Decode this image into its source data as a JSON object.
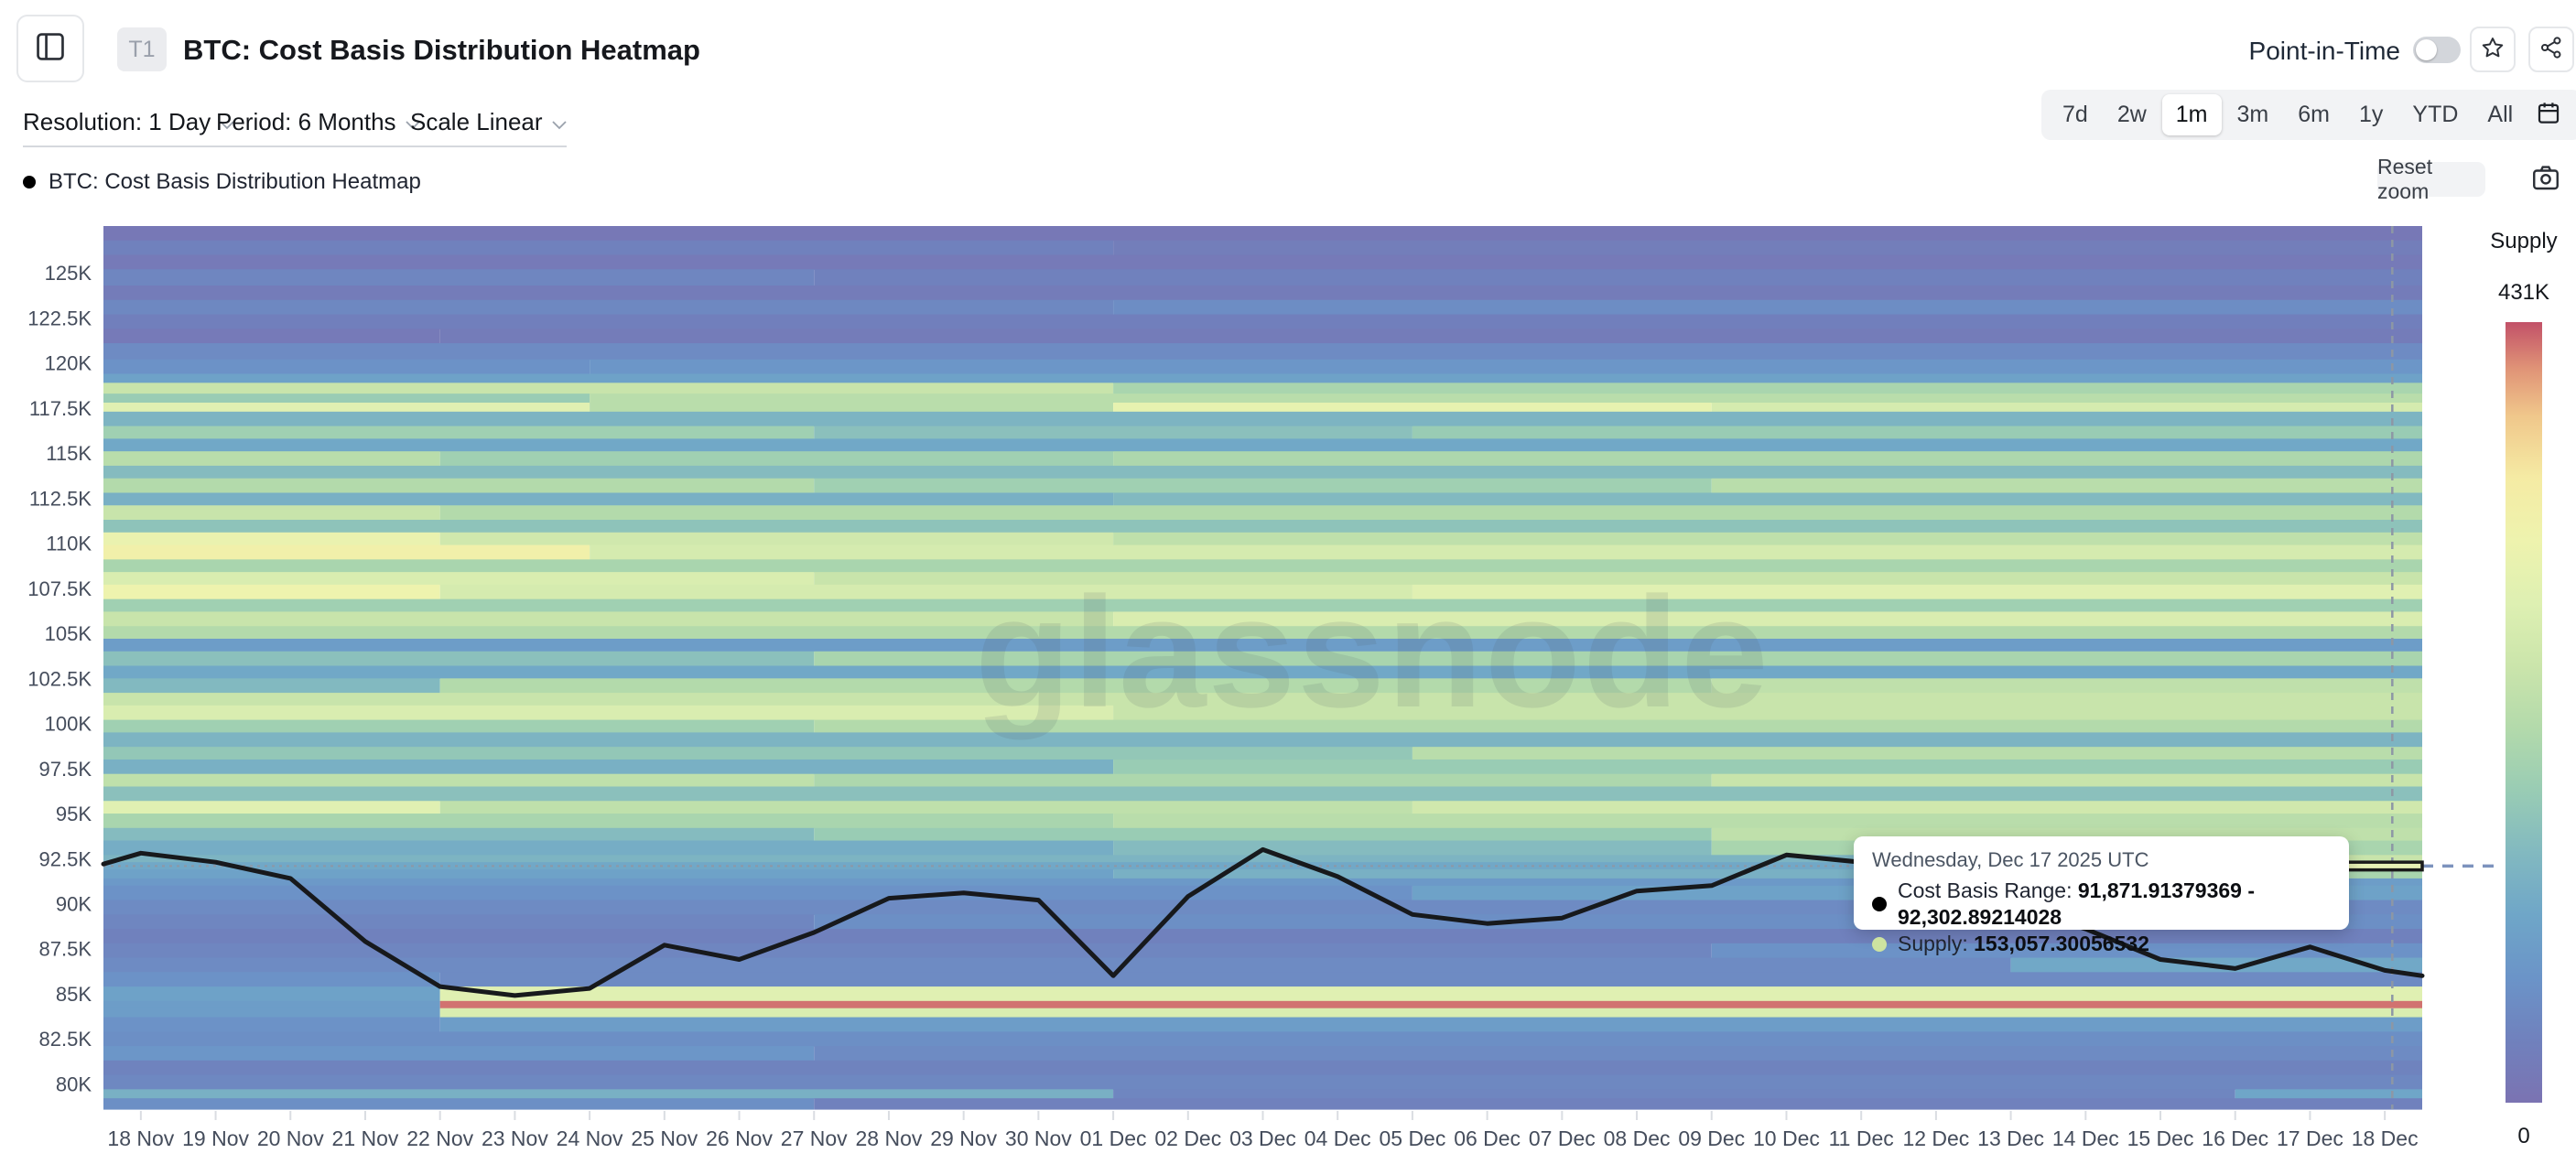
{
  "header": {
    "badge": "T1",
    "title": "BTC: Cost Basis Distribution Heatmap",
    "point_in_time_label": "Point-in-Time",
    "point_in_time_on": false
  },
  "controls": {
    "resolution_label": "Resolution: 1 Day",
    "period_label": "Period: 6 Months",
    "scale_label": "Scale Linear",
    "ranges": [
      "7d",
      "2w",
      "1m",
      "3m",
      "6m",
      "1y",
      "YTD",
      "All"
    ],
    "active_range": "1m"
  },
  "legend": {
    "series_label": "BTC: Cost Basis Distribution Heatmap",
    "reset_zoom_label": "Reset zoom"
  },
  "tooltip": {
    "date": "Wednesday, Dec 17 2025 UTC",
    "cost_basis_label": "Cost Basis Range: ",
    "cost_basis_value": "91,871.91379369 - 92,302.89214028",
    "supply_label": "Supply: ",
    "supply_value": "153,057.30056532",
    "supply_dot_color": "#cde3a0"
  },
  "colorbar": {
    "title": "Supply",
    "max_label": "431K",
    "min_label": "0"
  },
  "watermark": "glassnode",
  "colors": {
    "price_line": "#17191c",
    "crosshair": "#8d97a5",
    "connector_dash": "#7d93bd",
    "hover_cell_fill": "#e7f0b4",
    "hover_cell_border": "#1a1a1a",
    "axis_text": "#454d5c",
    "tick": "#dadde2",
    "colormap_stops": [
      [
        0.0,
        "#7b73b2"
      ],
      [
        0.08,
        "#7081bd"
      ],
      [
        0.16,
        "#6b94c8"
      ],
      [
        0.24,
        "#6fa6c8"
      ],
      [
        0.32,
        "#82b9c0"
      ],
      [
        0.4,
        "#99ccb4"
      ],
      [
        0.48,
        "#b3daab"
      ],
      [
        0.56,
        "#cbe5ab"
      ],
      [
        0.64,
        "#def0b2"
      ],
      [
        0.72,
        "#eef3ae"
      ],
      [
        0.8,
        "#f5eba4"
      ],
      [
        0.88,
        "#f0c78b"
      ],
      [
        0.94,
        "#e09477"
      ],
      [
        1.0,
        "#c25168"
      ]
    ]
  },
  "chart_data": {
    "type": "heatmap",
    "title": "BTC: Cost Basis Distribution Heatmap",
    "x_labels": [
      "18 Nov",
      "19 Nov",
      "20 Nov",
      "21 Nov",
      "22 Nov",
      "23 Nov",
      "24 Nov",
      "25 Nov",
      "26 Nov",
      "27 Nov",
      "28 Nov",
      "29 Nov",
      "30 Nov",
      "01 Dec",
      "02 Dec",
      "03 Dec",
      "04 Dec",
      "05 Dec",
      "06 Dec",
      "07 Dec",
      "08 Dec",
      "09 Dec",
      "10 Dec",
      "11 Dec",
      "12 Dec",
      "13 Dec",
      "14 Dec",
      "15 Dec",
      "16 Dec",
      "17 Dec",
      "18 Dec"
    ],
    "y_ticks": [
      {
        "label": "125K",
        "price": 125.0
      },
      {
        "label": "122.5K",
        "price": 122.5
      },
      {
        "label": "120K",
        "price": 120.0
      },
      {
        "label": "117.5K",
        "price": 117.5
      },
      {
        "label": "115K",
        "price": 115.0
      },
      {
        "label": "112.5K",
        "price": 112.5
      },
      {
        "label": "110K",
        "price": 110.0
      },
      {
        "label": "107.5K",
        "price": 107.5
      },
      {
        "label": "105K",
        "price": 105.0
      },
      {
        "label": "102.5K",
        "price": 102.5
      },
      {
        "label": "100K",
        "price": 100.0
      },
      {
        "label": "97.5K",
        "price": 97.5
      },
      {
        "label": "95K",
        "price": 95.0
      },
      {
        "label": "92.5K",
        "price": 92.5
      },
      {
        "label": "90K",
        "price": 90.0
      },
      {
        "label": "87.5K",
        "price": 87.5
      },
      {
        "label": "85K",
        "price": 85.0
      },
      {
        "label": "82.5K",
        "price": 82.5
      },
      {
        "label": "80K",
        "price": 80.0
      }
    ],
    "price_axis_range_k": [
      78.6,
      127.6
    ],
    "supply_range": [
      0,
      431000
    ],
    "grid": false,
    "legend_position": "top-left",
    "price_line": {
      "name": "BTC price",
      "points_u": [
        0,
        0.5,
        1.5,
        2.5,
        3.5,
        4.5,
        5.5,
        6.5,
        7.5,
        8.5,
        9.5,
        10.5,
        11.5,
        12.5,
        13.5,
        14.5,
        15.5,
        16.5,
        17.5,
        18.5,
        19.5,
        20.5,
        21.5,
        22.5,
        23.5,
        24.5,
        25.5,
        26.5,
        27.5,
        28.5,
        29.5,
        30.5,
        31
      ],
      "values_k": [
        92.2,
        92.8,
        92.3,
        91.4,
        87.9,
        85.4,
        84.9,
        85.3,
        87.7,
        86.9,
        88.4,
        90.3,
        90.6,
        90.2,
        86.0,
        90.4,
        93.0,
        91.5,
        89.4,
        88.9,
        89.2,
        90.7,
        91.0,
        92.7,
        92.3,
        91.2,
        89.9,
        88.6,
        86.9,
        86.4,
        87.6,
        86.3,
        86.0
      ]
    },
    "crosshair": {
      "hover_day_u": 30.6,
      "hover_price_k": 92.09,
      "hover_cell_price_k": [
        91.871,
        92.302
      ],
      "hover_cell_u": [
        30,
        31
      ]
    },
    "heatmap_rows": [
      [
        127.6,
        126.8,
        [
          [
            0,
            31,
            0.03
          ]
        ]
      ],
      [
        126.8,
        126.0,
        [
          [
            0,
            13.5,
            0.08
          ],
          [
            13.5,
            31,
            0.06
          ]
        ]
      ],
      [
        126.0,
        125.2,
        [
          [
            0,
            31,
            0.04
          ]
        ]
      ],
      [
        125.2,
        124.3,
        [
          [
            0,
            9.5,
            0.1
          ],
          [
            9.5,
            31,
            0.08
          ]
        ]
      ],
      [
        124.3,
        123.5,
        [
          [
            0,
            31,
            0.05
          ]
        ]
      ],
      [
        123.5,
        122.7,
        [
          [
            0,
            13.5,
            0.11
          ],
          [
            13.5,
            31,
            0.13
          ]
        ]
      ],
      [
        122.7,
        121.9,
        [
          [
            0,
            31,
            0.07
          ]
        ]
      ],
      [
        121.9,
        121.1,
        [
          [
            0,
            4.5,
            0.04
          ],
          [
            4.5,
            31,
            0.05
          ]
        ]
      ],
      [
        121.1,
        120.2,
        [
          [
            0,
            31,
            0.12
          ]
        ]
      ],
      [
        120.2,
        119.4,
        [
          [
            0,
            6.5,
            0.15
          ],
          [
            6.5,
            31,
            0.17
          ]
        ]
      ],
      [
        119.4,
        118.9,
        [
          [
            0,
            31,
            0.22
          ]
        ]
      ],
      [
        118.9,
        118.3,
        [
          [
            0,
            13.5,
            0.55
          ],
          [
            13.5,
            31,
            0.45
          ]
        ]
      ],
      [
        118.3,
        117.8,
        [
          [
            0,
            6.5,
            0.4
          ],
          [
            6.5,
            31,
            0.5
          ]
        ]
      ],
      [
        117.8,
        117.3,
        [
          [
            0,
            6.5,
            0.65
          ],
          [
            6.5,
            13.5,
            0.5
          ],
          [
            13.5,
            21.5,
            0.68
          ],
          [
            21.5,
            31,
            0.6
          ]
        ]
      ],
      [
        117.3,
        116.5,
        [
          [
            0,
            31,
            0.3
          ]
        ]
      ],
      [
        116.5,
        115.8,
        [
          [
            0,
            9.5,
            0.42
          ],
          [
            9.5,
            17.5,
            0.35
          ],
          [
            17.5,
            31,
            0.4
          ]
        ]
      ],
      [
        115.8,
        115.1,
        [
          [
            0,
            31,
            0.25
          ]
        ]
      ],
      [
        115.1,
        114.3,
        [
          [
            0,
            4.5,
            0.5
          ],
          [
            4.5,
            13.5,
            0.42
          ],
          [
            13.5,
            31,
            0.46
          ]
        ]
      ],
      [
        114.3,
        113.6,
        [
          [
            0,
            31,
            0.33
          ]
        ]
      ],
      [
        113.6,
        112.8,
        [
          [
            0,
            9.5,
            0.48
          ],
          [
            9.5,
            21.5,
            0.42
          ],
          [
            21.5,
            31,
            0.5
          ]
        ]
      ],
      [
        112.8,
        112.1,
        [
          [
            0,
            13.5,
            0.28
          ],
          [
            13.5,
            31,
            0.32
          ]
        ]
      ],
      [
        112.1,
        111.3,
        [
          [
            0,
            4.5,
            0.55
          ],
          [
            4.5,
            31,
            0.48
          ]
        ]
      ],
      [
        111.3,
        110.6,
        [
          [
            0,
            31,
            0.36
          ]
        ]
      ],
      [
        110.6,
        109.9,
        [
          [
            0,
            4.5,
            0.7
          ],
          [
            4.5,
            13.5,
            0.58
          ],
          [
            13.5,
            31,
            0.52
          ]
        ]
      ],
      [
        109.9,
        109.1,
        [
          [
            0,
            6.5,
            0.75
          ],
          [
            6.5,
            31,
            0.6
          ]
        ]
      ],
      [
        109.1,
        108.4,
        [
          [
            0,
            31,
            0.45
          ]
        ]
      ],
      [
        108.4,
        107.7,
        [
          [
            0,
            9.5,
            0.62
          ],
          [
            9.5,
            31,
            0.55
          ]
        ]
      ],
      [
        107.7,
        106.9,
        [
          [
            0,
            4.5,
            0.72
          ],
          [
            4.5,
            17.5,
            0.6
          ],
          [
            17.5,
            31,
            0.65
          ]
        ]
      ],
      [
        106.9,
        106.2,
        [
          [
            0,
            31,
            0.42
          ]
        ]
      ],
      [
        106.2,
        105.4,
        [
          [
            0,
            13.5,
            0.55
          ],
          [
            13.5,
            31,
            0.62
          ]
        ]
      ],
      [
        105.4,
        104.7,
        [
          [
            0,
            31,
            0.48
          ]
        ]
      ],
      [
        104.7,
        104.0,
        [
          [
            0,
            31,
            0.2
          ]
        ]
      ],
      [
        104.0,
        103.2,
        [
          [
            0,
            9.5,
            0.35
          ],
          [
            9.5,
            31,
            0.45
          ]
        ]
      ],
      [
        103.2,
        102.5,
        [
          [
            0,
            31,
            0.25
          ]
        ]
      ],
      [
        102.5,
        101.7,
        [
          [
            0,
            4.5,
            0.32
          ],
          [
            4.5,
            21.5,
            0.48
          ],
          [
            21.5,
            31,
            0.52
          ]
        ]
      ],
      [
        101.7,
        101.0,
        [
          [
            0,
            31,
            0.55
          ]
        ]
      ],
      [
        101.0,
        100.2,
        [
          [
            0,
            13.5,
            0.62
          ],
          [
            13.5,
            31,
            0.55
          ]
        ]
      ],
      [
        100.2,
        99.5,
        [
          [
            0,
            9.5,
            0.42
          ],
          [
            9.5,
            31,
            0.48
          ]
        ]
      ],
      [
        99.5,
        98.7,
        [
          [
            0,
            31,
            0.3
          ]
        ]
      ],
      [
        98.7,
        98.0,
        [
          [
            0,
            17.5,
            0.38
          ],
          [
            17.5,
            31,
            0.5
          ]
        ]
      ],
      [
        98.0,
        97.2,
        [
          [
            0,
            13.5,
            0.28
          ],
          [
            13.5,
            31,
            0.4
          ]
        ]
      ],
      [
        97.2,
        96.5,
        [
          [
            0,
            9.5,
            0.52
          ],
          [
            9.5,
            21.5,
            0.46
          ],
          [
            21.5,
            31,
            0.55
          ]
        ]
      ],
      [
        96.5,
        95.7,
        [
          [
            0,
            31,
            0.35
          ]
        ]
      ],
      [
        95.7,
        95.0,
        [
          [
            0,
            4.5,
            0.65
          ],
          [
            4.5,
            17.5,
            0.52
          ],
          [
            17.5,
            31,
            0.58
          ]
        ]
      ],
      [
        95.0,
        94.2,
        [
          [
            0,
            13.5,
            0.45
          ],
          [
            13.5,
            31,
            0.5
          ]
        ]
      ],
      [
        94.2,
        93.5,
        [
          [
            0,
            9.5,
            0.33
          ],
          [
            9.5,
            21.5,
            0.4
          ],
          [
            21.5,
            31,
            0.52
          ]
        ]
      ],
      [
        93.5,
        92.7,
        [
          [
            0,
            13.5,
            0.27
          ],
          [
            13.5,
            21.5,
            0.33
          ],
          [
            21.5,
            31,
            0.45
          ]
        ]
      ],
      [
        92.7,
        92.3,
        [
          [
            0,
            25.5,
            0.3
          ],
          [
            25.5,
            31,
            0.55
          ]
        ]
      ],
      [
        92.3,
        91.9,
        [
          [
            0,
            27.5,
            0.25
          ],
          [
            27.5,
            31,
            0.6
          ]
        ]
      ],
      [
        91.9,
        91.4,
        [
          [
            0,
            13.5,
            0.22
          ],
          [
            13.5,
            25.5,
            0.28
          ],
          [
            25.5,
            31,
            0.45
          ]
        ]
      ],
      [
        91.4,
        91.0,
        [
          [
            0,
            28.5,
            0.18
          ],
          [
            28.5,
            31,
            0.2
          ]
        ]
      ],
      [
        91.0,
        90.2,
        [
          [
            0,
            17.5,
            0.15
          ],
          [
            17.5,
            31,
            0.22
          ]
        ]
      ],
      [
        90.2,
        89.4,
        [
          [
            0,
            31,
            0.12
          ]
        ]
      ],
      [
        89.4,
        88.6,
        [
          [
            0,
            9.5,
            0.1
          ],
          [
            9.5,
            31,
            0.14
          ]
        ]
      ],
      [
        88.6,
        87.8,
        [
          [
            0,
            31,
            0.08
          ]
        ]
      ],
      [
        87.8,
        87.0,
        [
          [
            0,
            21.5,
            0.1
          ],
          [
            21.5,
            31,
            0.15
          ]
        ]
      ],
      [
        87.0,
        86.2,
        [
          [
            0,
            25.5,
            0.12
          ],
          [
            25.5,
            31,
            0.25
          ]
        ]
      ],
      [
        86.2,
        85.4,
        [
          [
            0,
            4.5,
            0.15
          ],
          [
            4.5,
            31,
            0.12
          ]
        ]
      ],
      [
        85.4,
        84.6,
        [
          [
            0,
            4.5,
            0.22
          ],
          [
            4.5,
            31,
            0.65
          ]
        ]
      ],
      [
        84.6,
        84.2,
        [
          [
            0,
            4.5,
            0.2
          ],
          [
            4.5,
            31,
            0.97
          ]
        ]
      ],
      [
        84.2,
        83.7,
        [
          [
            0,
            4.5,
            0.2
          ],
          [
            4.5,
            31,
            0.62
          ]
        ]
      ],
      [
        83.7,
        82.9,
        [
          [
            0,
            4.5,
            0.15
          ],
          [
            4.5,
            31,
            0.2
          ]
        ]
      ],
      [
        82.9,
        82.1,
        [
          [
            0,
            31,
            0.14
          ]
        ]
      ],
      [
        82.1,
        81.3,
        [
          [
            0,
            9.5,
            0.17
          ],
          [
            9.5,
            31,
            0.12
          ]
        ]
      ],
      [
        81.3,
        80.5,
        [
          [
            0,
            31,
            0.09
          ]
        ]
      ],
      [
        80.5,
        79.7,
        [
          [
            0,
            31,
            0.11
          ]
        ]
      ],
      [
        79.7,
        79.2,
        [
          [
            0,
            13.5,
            0.28
          ],
          [
            13.5,
            28.5,
            0.1
          ],
          [
            28.5,
            31,
            0.24
          ]
        ]
      ],
      [
        79.2,
        78.6,
        [
          [
            0,
            9.5,
            0.14
          ],
          [
            9.5,
            31,
            0.08
          ]
        ]
      ]
    ]
  }
}
